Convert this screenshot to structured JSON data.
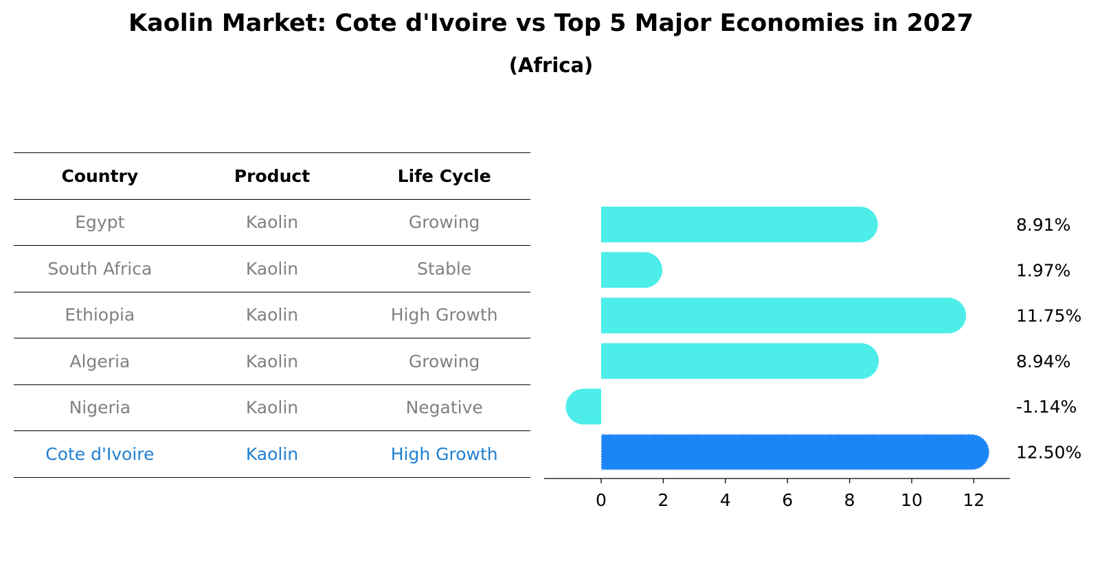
{
  "title": "Kaolin Market: Cote d'Ivoire vs Top 5 Major Economies in 2027",
  "subtitle": "(Africa)",
  "table": {
    "headers": [
      "Country",
      "Product",
      "Life Cycle"
    ],
    "rows": [
      {
        "country": "Egypt",
        "product": "Kaolin",
        "life_cycle": "Growing"
      },
      {
        "country": "South Africa",
        "product": "Kaolin",
        "life_cycle": "Stable"
      },
      {
        "country": "Ethiopia",
        "product": "Kaolin",
        "life_cycle": "High Growth"
      },
      {
        "country": "Algeria",
        "product": "Kaolin",
        "life_cycle": "Growing"
      },
      {
        "country": "Nigeria",
        "product": "Kaolin",
        "life_cycle": "Negative"
      },
      {
        "country": "Cote d'Ivoire",
        "product": "Kaolin",
        "life_cycle": "High Growth"
      }
    ]
  },
  "chart_data": {
    "type": "bar",
    "orientation": "horizontal",
    "categories": [
      "Egypt",
      "South Africa",
      "Ethiopia",
      "Algeria",
      "Nigeria",
      "Cote d'Ivoire"
    ],
    "values": [
      8.91,
      1.97,
      11.75,
      8.94,
      -1.14,
      12.5
    ],
    "value_labels": [
      "8.91%",
      "1.97%",
      "11.75%",
      "8.94%",
      "-1.14%",
      "12.50%"
    ],
    "highlight_index": 5,
    "xlim": [
      -1.9,
      13.2
    ],
    "xticks": [
      0,
      2,
      4,
      6,
      8,
      10,
      12
    ],
    "xtick_labels": [
      "0",
      "2",
      "4",
      "6",
      "8",
      "10",
      "12"
    ],
    "colors": {
      "default": "#4dedea",
      "highlight": "#1b85f5"
    }
  }
}
